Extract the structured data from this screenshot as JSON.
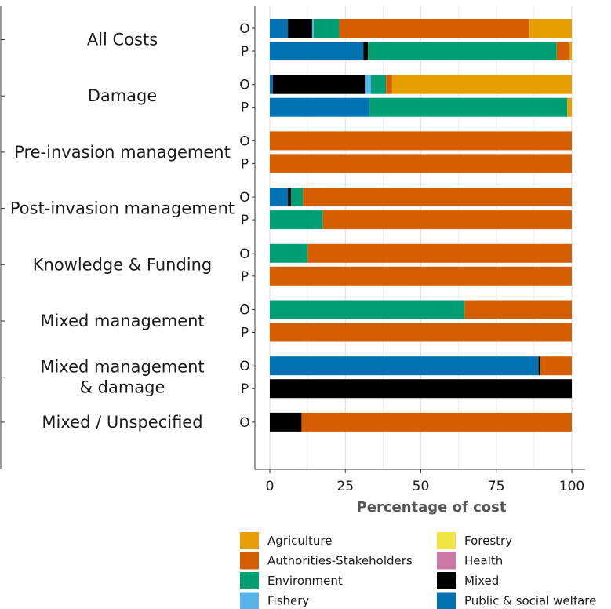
{
  "chart_data": {
    "type": "bar",
    "orientation": "horizontal",
    "stacked": true,
    "xlabel": "Percentage of cost",
    "xlim": [
      0,
      100
    ],
    "xticks": [
      0,
      25,
      50,
      75,
      100
    ],
    "grid": true,
    "legend_position": "bottom",
    "colors": {
      "Agriculture": "#E69F00",
      "Authorities-Stakeholders": "#D55E00",
      "Environment": "#009E73",
      "Fishery": "#56B4E9",
      "Forestry": "#F0E442",
      "Health": "#CC79A7",
      "Mixed": "#000000",
      "Public & social welfare": "#0072B2"
    },
    "legend": [
      "Agriculture",
      "Authorities-Stakeholders",
      "Environment",
      "Fishery",
      "Forestry",
      "Health",
      "Mixed",
      "Public & social welfare"
    ],
    "categories": [
      {
        "label": [
          "All Costs"
        ],
        "bars": [
          {
            "sub": "O",
            "segments": [
              {
                "sector": "Public & social welfare",
                "value": 6
              },
              {
                "sector": "Mixed",
                "value": 8
              },
              {
                "sector": "Fishery",
                "value": 0.5
              },
              {
                "sector": "Environment",
                "value": 8.5
              },
              {
                "sector": "Authorities-Stakeholders",
                "value": 63
              },
              {
                "sector": "Agriculture",
                "value": 14
              }
            ]
          },
          {
            "sub": "P",
            "segments": [
              {
                "sector": "Public & social welfare",
                "value": 31
              },
              {
                "sector": "Mixed",
                "value": 1.5
              },
              {
                "sector": "Environment",
                "value": 62.5
              },
              {
                "sector": "Authorities-Stakeholders",
                "value": 4
              },
              {
                "sector": "Agriculture",
                "value": 1
              }
            ]
          }
        ]
      },
      {
        "label": [
          "Damage"
        ],
        "bars": [
          {
            "sub": "O",
            "segments": [
              {
                "sector": "Public & social welfare",
                "value": 1
              },
              {
                "sector": "Mixed",
                "value": 30.5
              },
              {
                "sector": "Fishery",
                "value": 2
              },
              {
                "sector": "Environment",
                "value": 5
              },
              {
                "sector": "Authorities-Stakeholders",
                "value": 2
              },
              {
                "sector": "Agriculture",
                "value": 59.5
              }
            ]
          },
          {
            "sub": "P",
            "segments": [
              {
                "sector": "Public & social welfare",
                "value": 33
              },
              {
                "sector": "Environment",
                "value": 65.5
              },
              {
                "sector": "Agriculture",
                "value": 1.5
              }
            ]
          }
        ]
      },
      {
        "label": [
          "Pre-invasion management"
        ],
        "bars": [
          {
            "sub": "O",
            "segments": [
              {
                "sector": "Authorities-Stakeholders",
                "value": 100
              }
            ]
          },
          {
            "sub": "P",
            "segments": [
              {
                "sector": "Authorities-Stakeholders",
                "value": 100
              }
            ]
          }
        ]
      },
      {
        "label": [
          "Post-invasion management"
        ],
        "bars": [
          {
            "sub": "O",
            "segments": [
              {
                "sector": "Public & social welfare",
                "value": 6
              },
              {
                "sector": "Mixed",
                "value": 1
              },
              {
                "sector": "Environment",
                "value": 4
              },
              {
                "sector": "Authorities-Stakeholders",
                "value": 89
              }
            ]
          },
          {
            "sub": "P",
            "segments": [
              {
                "sector": "Environment",
                "value": 17.5
              },
              {
                "sector": "Authorities-Stakeholders",
                "value": 82.5
              }
            ]
          }
        ]
      },
      {
        "label": [
          "Knowledge & Funding"
        ],
        "bars": [
          {
            "sub": "O",
            "segments": [
              {
                "sector": "Environment",
                "value": 12.5
              },
              {
                "sector": "Authorities-Stakeholders",
                "value": 87.5
              }
            ]
          },
          {
            "sub": "P",
            "segments": [
              {
                "sector": "Authorities-Stakeholders",
                "value": 100
              }
            ]
          }
        ]
      },
      {
        "label": [
          "Mixed management"
        ],
        "bars": [
          {
            "sub": "O",
            "segments": [
              {
                "sector": "Environment",
                "value": 64.5
              },
              {
                "sector": "Authorities-Stakeholders",
                "value": 35.5
              }
            ]
          },
          {
            "sub": "P",
            "segments": [
              {
                "sector": "Authorities-Stakeholders",
                "value": 100
              }
            ]
          }
        ]
      },
      {
        "label": [
          "Mixed management",
          "& damage"
        ],
        "bars": [
          {
            "sub": "O",
            "segments": [
              {
                "sector": "Public & social welfare",
                "value": 89
              },
              {
                "sector": "Mixed",
                "value": 0.5
              },
              {
                "sector": "Authorities-Stakeholders",
                "value": 10.5
              }
            ]
          },
          {
            "sub": "P",
            "segments": [
              {
                "sector": "Mixed",
                "value": 100
              }
            ]
          }
        ]
      },
      {
        "label": [
          "Mixed / Unspecified"
        ],
        "bars": [
          {
            "sub": "O",
            "segments": [
              {
                "sector": "Mixed",
                "value": 10.5
              },
              {
                "sector": "Authorities-Stakeholders",
                "value": 89.5
              }
            ]
          }
        ]
      }
    ]
  }
}
